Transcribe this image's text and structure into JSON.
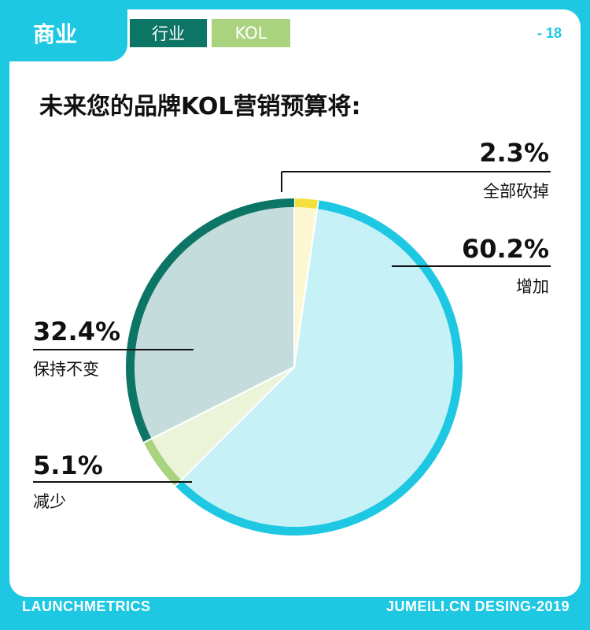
{
  "header": {
    "section_tab": "商业",
    "tab_industry": "行业",
    "tab_kol": "KOL",
    "page_number": "- 18"
  },
  "chart_data": {
    "type": "pie",
    "title": "未来您的品牌KOL营销预算将:",
    "slices": [
      {
        "label": "全部砍掉",
        "value": 2.3,
        "display": "2.3%",
        "color": "#f3e03a",
        "fill": "#fdf8d3"
      },
      {
        "label": "增加",
        "value": 60.2,
        "display": "60.2%",
        "color": "#1ec8e2",
        "fill": "#c6f1f7"
      },
      {
        "label": "减少",
        "value": 5.1,
        "display": "5.1%",
        "color": "#a9d37e",
        "fill": "#ebf4d9"
      },
      {
        "label": "保持不变",
        "value": 32.4,
        "display": "32.4%",
        "color": "#0d7566",
        "fill": "#c4dcdc"
      }
    ]
  },
  "footer": {
    "left": "LAUNCHMETRICS",
    "right": "JUMEILI.CN DESING-2019"
  }
}
